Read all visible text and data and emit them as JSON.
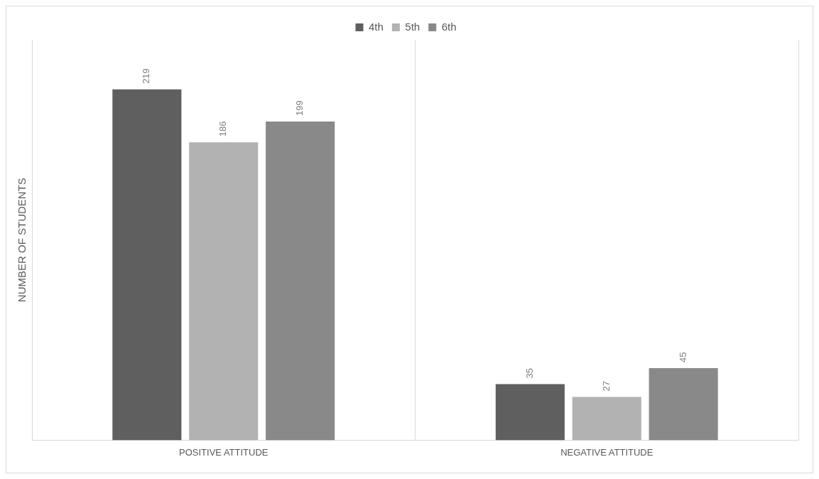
{
  "chart_data": {
    "type": "bar",
    "categories": [
      "POSITIVE ATTITUDE",
      "NEGATIVE ATTITUDE"
    ],
    "ylabel": "NUMBER OF STUDENTS",
    "series": [
      {
        "name": "4th",
        "color": "#5f5f5f",
        "values": [
          219,
          35
        ]
      },
      {
        "name": "5th",
        "color": "#b2b2b2",
        "values": [
          186,
          27
        ]
      },
      {
        "name": "6th",
        "color": "#898989",
        "values": [
          199,
          45
        ]
      }
    ],
    "data_labels": true,
    "legend": "top",
    "grid": "x",
    "tick_labels": "x"
  }
}
